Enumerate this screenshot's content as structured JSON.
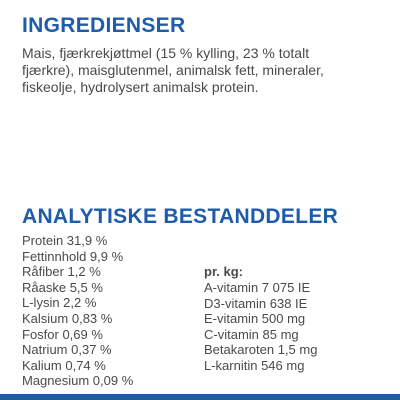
{
  "ingredients": {
    "heading": "INGREDIENSER",
    "lines": [
      "Mais, fjærkrekjøttmel (15 % kylling, 23 % totalt",
      "fjærkre), maisglutenmel, animalsk fett, mineraler,",
      "fiskeolje, hydrolysert animalsk protein."
    ]
  },
  "analytic": {
    "heading": "ANALYTISKE BESTANDDELER",
    "constituents": [
      "Protein 31,9 %",
      "Fettinnhold 9,9 %",
      "Råfiber 1,2 %",
      "Råaske 5,5 %",
      "L-lysin 2,2 %",
      "Kalsium 0,83 %",
      "Fosfor 0,69 %",
      "Natrium 0,37 %",
      "Kalium 0,74 %",
      "Magnesium 0,09 %"
    ],
    "per_kg_label": "pr. kg:",
    "per_kg": [
      "A-vitamin 7 075 IE",
      "D3-vitamin 638 IE",
      "E-vitamin 500 mg",
      "C-vitamin 85 mg",
      "Betakaroten 1,5 mg",
      "L-karnitin 546 mg"
    ]
  },
  "colors": {
    "accent": "#1f5bab",
    "text": "#4a4a4a",
    "background": "#ffffff"
  }
}
